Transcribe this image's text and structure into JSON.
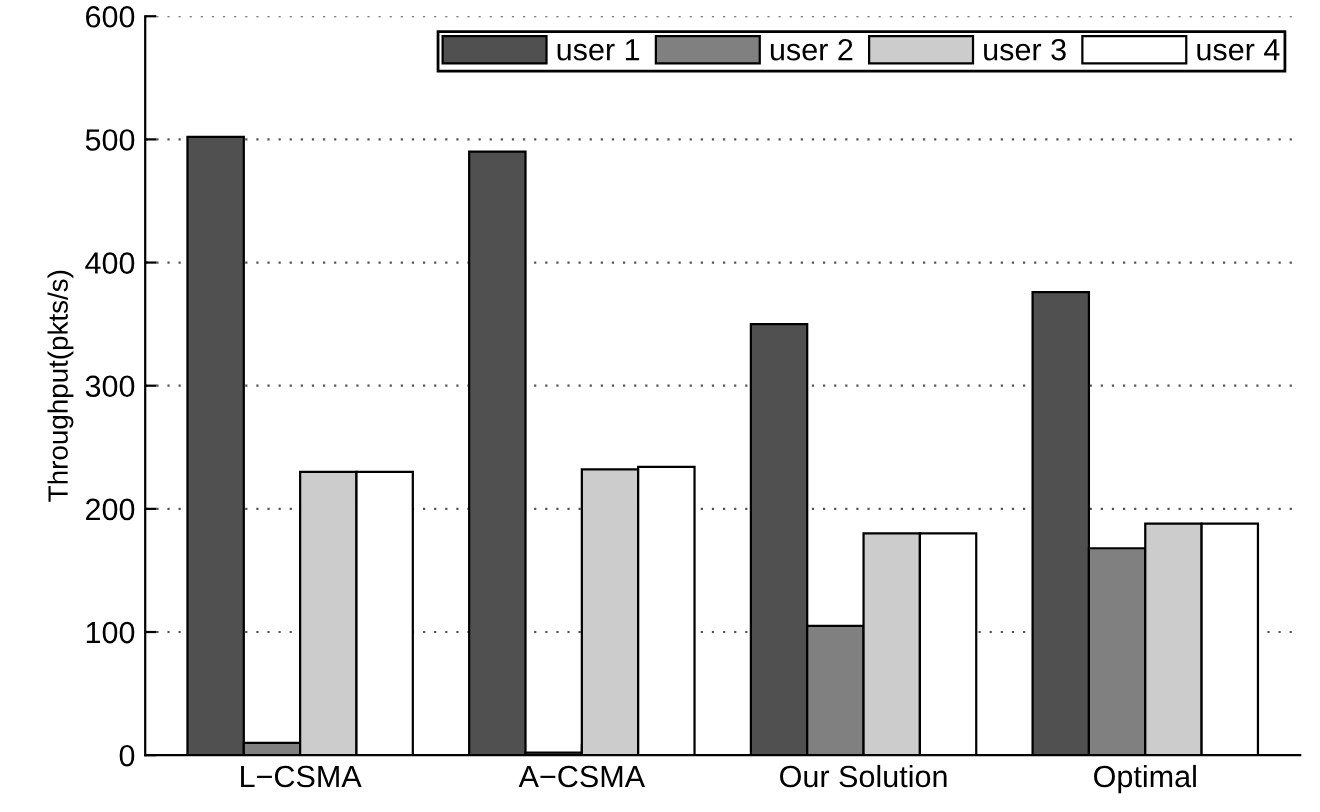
{
  "chart_data": {
    "type": "bar",
    "ylabel": "Throughput(pkts/s)",
    "categories": [
      "L−CSMA",
      "A−CSMA",
      "Our Solution",
      "Optimal"
    ],
    "series": [
      {
        "name": "user 1",
        "color": "#505050",
        "values": [
          502,
          490,
          350,
          376
        ]
      },
      {
        "name": "user 2",
        "color": "#808080",
        "values": [
          10,
          2,
          105,
          168
        ]
      },
      {
        "name": "user 3",
        "color": "#cccccc",
        "values": [
          230,
          232,
          180,
          188
        ]
      },
      {
        "name": "user 4",
        "color": "#ffffff",
        "values": [
          230,
          234,
          180,
          188
        ]
      }
    ],
    "ylim": [
      0,
      600
    ],
    "yticks": [
      0,
      100,
      200,
      300,
      400,
      500,
      600
    ],
    "grid": "y",
    "legend": "top right"
  }
}
